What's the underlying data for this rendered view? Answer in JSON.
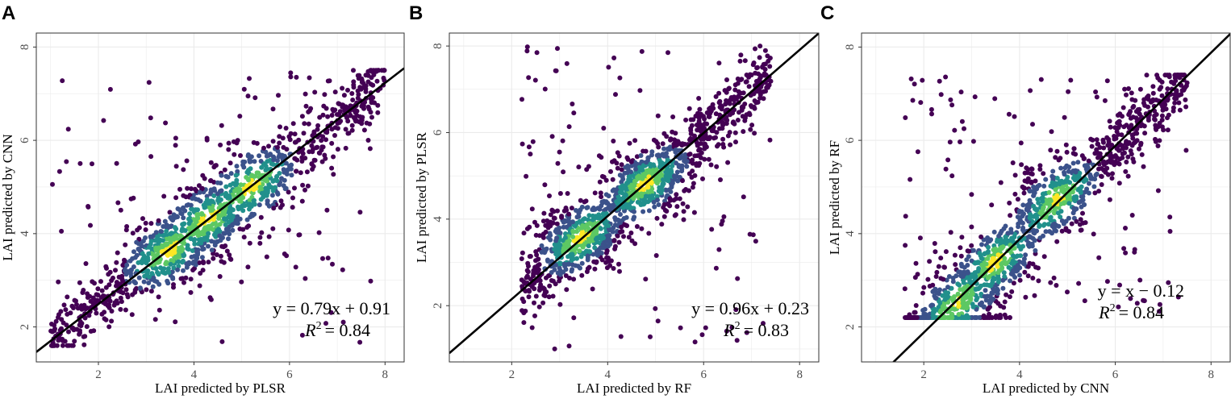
{
  "colors": {
    "background": "#ffffff",
    "grid": "#ebebeb",
    "frame": "#333333",
    "fit_line": "#000000",
    "density_low": "#440154",
    "density_mid1": "#3b528b",
    "density_mid2": "#21908c",
    "density_mid3": "#5dc863",
    "density_high": "#fde725"
  },
  "chart_data": [
    {
      "type": "scatter",
      "panel": "A",
      "xlabel": "LAI predicted by PLSR",
      "ylabel": "LAI predicted by CNN",
      "xlim": [
        0.7,
        8.4
      ],
      "ylim": [
        1.25,
        8.3
      ],
      "xticks": [
        2,
        4,
        6,
        8
      ],
      "yticks": [
        2,
        4,
        6,
        8
      ],
      "xtick_labels": [
        "2",
        "4",
        "6",
        "8"
      ],
      "ytick_labels": [
        "2",
        "4",
        "6",
        "8"
      ],
      "fit": {
        "slope": 0.79,
        "intercept": 0.91
      },
      "equation": "y = 0.79x + 0.91",
      "r2_label": "R",
      "r2_sup": "2",
      "r2_value": "= 0.84",
      "annotation_anchor": "bottom-right",
      "point_cloud": {
        "xrange": [
          1.0,
          8.0
        ],
        "yrange": [
          1.6,
          7.5
        ],
        "density_centers": [
          [
            4.3,
            4.3
          ],
          [
            5.2,
            5.0
          ],
          [
            3.5,
            3.6
          ]
        ]
      }
    },
    {
      "type": "scatter",
      "panel": "B",
      "xlabel": "LAI predicted by RF",
      "ylabel": "LAI predicted by PLSR",
      "xlim": [
        0.7,
        8.4
      ],
      "ylim": [
        0.7,
        8.3
      ],
      "xticks": [
        2,
        4,
        6,
        8
      ],
      "yticks": [
        2,
        4,
        6,
        8
      ],
      "xtick_labels": [
        "2",
        "4",
        "6",
        "8"
      ],
      "ytick_labels": [
        "2",
        "4",
        "6",
        "8"
      ],
      "fit": {
        "slope": 0.96,
        "intercept": 0.23
      },
      "equation": "y = 0.96x + 0.23",
      "r2_label": "R",
      "r2_sup": "2",
      "r2_value": "= 0.83",
      "annotation_anchor": "bottom-right",
      "point_cloud": {
        "xrange": [
          2.2,
          7.4
        ],
        "yrange": [
          1.0,
          8.0
        ],
        "density_centers": [
          [
            3.4,
            3.6
          ],
          [
            4.8,
            4.8
          ]
        ]
      }
    },
    {
      "type": "scatter",
      "panel": "C",
      "xlabel": "LAI predicted by CNN",
      "ylabel": "LAI predicted by RF",
      "xlim": [
        0.7,
        8.4
      ],
      "ylim": [
        1.25,
        8.3
      ],
      "xticks": [
        2,
        4,
        6,
        8
      ],
      "yticks": [
        2,
        4,
        6,
        8
      ],
      "xtick_labels": [
        "2",
        "4",
        "6",
        "8"
      ],
      "ytick_labels": [
        "2",
        "4",
        "6",
        "8"
      ],
      "fit": {
        "slope": 1.0,
        "intercept": -0.12
      },
      "equation": "y = x − 0.12",
      "r2_label": "R",
      "r2_sup": "2",
      "r2_value": "= 0.84",
      "annotation_anchor": "bottom-right",
      "point_cloud": {
        "xrange": [
          1.6,
          7.5
        ],
        "yrange": [
          2.2,
          7.4
        ],
        "density_centers": [
          [
            4.7,
            4.8
          ],
          [
            3.5,
            3.4
          ],
          [
            2.8,
            2.4
          ]
        ]
      }
    }
  ]
}
